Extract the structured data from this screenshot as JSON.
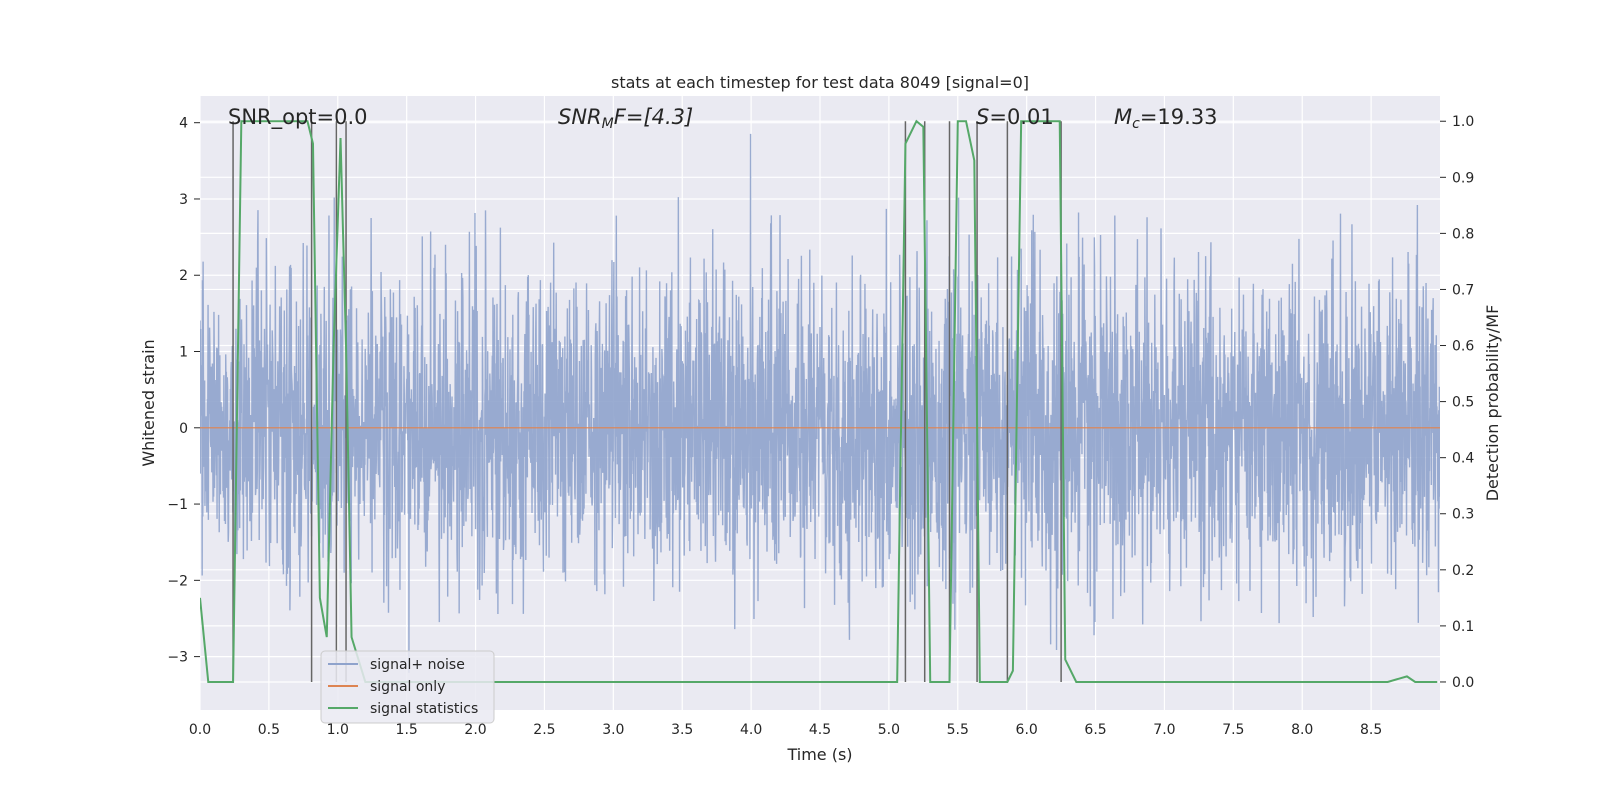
{
  "chart_data": {
    "type": "line",
    "title": "stats at each timestep for test data 8049 [signal=0]",
    "xlabel": "Time (s)",
    "ylabel": "Whitened strain",
    "ylabel_right": "Detection probability/MF",
    "xlim": [
      0.0,
      9.0
    ],
    "ylim": [
      -3.7,
      4.35
    ],
    "ylim_right": [
      -0.05,
      1.045
    ],
    "grid": true,
    "legend_position": "lower left",
    "x_ticks": [
      "0.0",
      "0.5",
      "1.0",
      "1.5",
      "2.0",
      "2.5",
      "3.0",
      "3.5",
      "4.0",
      "4.5",
      "5.0",
      "5.5",
      "6.0",
      "6.5",
      "7.0",
      "7.5",
      "8.0",
      "8.5"
    ],
    "x_tick_values": [
      0.0,
      0.5,
      1.0,
      1.5,
      2.0,
      2.5,
      3.0,
      3.5,
      4.0,
      4.5,
      5.0,
      5.5,
      6.0,
      6.5,
      7.0,
      7.5,
      8.0,
      8.5
    ],
    "y_ticks": [
      "4",
      "3",
      "2",
      "1",
      "0",
      "−1",
      "−2",
      "−3"
    ],
    "y_tick_values": [
      4,
      3,
      2,
      1,
      0,
      -1,
      -2,
      -3
    ],
    "y_ticks_right": [
      "1.0",
      "0.9",
      "0.8",
      "0.7",
      "0.6",
      "0.5",
      "0.4",
      "0.3",
      "0.2",
      "0.1",
      "0.0"
    ],
    "y_tick_values_right": [
      1.0,
      0.9,
      0.8,
      0.7,
      0.6,
      0.5,
      0.4,
      0.3,
      0.2,
      0.1,
      0.0
    ],
    "annotations": {
      "snr_opt": "SNR_opt=0.0",
      "snr_mf_symbol": "SNR",
      "snr_mf_sub": "M",
      "snr_mf_rest": "F=[4.3]",
      "s_symbol": "S",
      "s_rest": "=0.01",
      "mc_symbol": "M",
      "mc_sub": "c",
      "mc_rest": "=19.33"
    },
    "series": [
      {
        "name": "signal+ noise",
        "color": "#8fa3cc",
        "axis": "left",
        "kind": "noise",
        "noise_sigma": 1.0,
        "noise_extent": [
          -3.4,
          4.0
        ],
        "x_range": [
          0.0,
          9.0
        ]
      },
      {
        "name": "signal only",
        "color": "#dd8452",
        "axis": "left",
        "x": [
          0.0,
          9.0
        ],
        "y": [
          0.0,
          0.0
        ]
      },
      {
        "name": "signal statistics",
        "color": "#55a868",
        "axis": "right",
        "x": [
          0.0,
          0.06,
          0.12,
          0.2,
          0.24,
          0.3,
          0.4,
          0.6,
          0.78,
          0.82,
          0.87,
          0.92,
          0.97,
          1.02,
          1.06,
          1.1,
          1.2,
          1.3,
          1.5,
          2.0,
          3.0,
          4.0,
          5.06,
          5.12,
          5.2,
          5.25,
          5.3,
          5.38,
          5.44,
          5.5,
          5.56,
          5.62,
          5.66,
          5.72,
          5.86,
          5.9,
          5.96,
          6.02,
          6.24,
          6.28,
          6.36,
          7.0,
          7.6,
          7.72,
          7.78,
          8.4,
          8.62,
          8.76,
          8.82,
          8.98
        ],
        "y": [
          0.15,
          0.0,
          0.0,
          0.0,
          0.0,
          1.0,
          1.0,
          1.0,
          1.0,
          0.96,
          0.15,
          0.08,
          0.6,
          0.97,
          0.6,
          0.08,
          0.0,
          0.0,
          0.0,
          0.0,
          0.0,
          0.0,
          0.0,
          0.96,
          1.0,
          0.99,
          0.0,
          0.0,
          0.0,
          1.0,
          1.0,
          0.93,
          0.0,
          0.0,
          0.0,
          0.02,
          1.0,
          1.0,
          1.0,
          0.04,
          0.0,
          0.0,
          0.0,
          0.0,
          0.0,
          0.0,
          0.0,
          0.01,
          0.0,
          0.0
        ]
      }
    ],
    "vertical_markers": [
      0.24,
      0.81,
      0.99,
      1.06,
      5.12,
      5.26,
      5.44,
      5.64,
      5.86,
      6.25
    ],
    "marker_color": "#666666"
  }
}
